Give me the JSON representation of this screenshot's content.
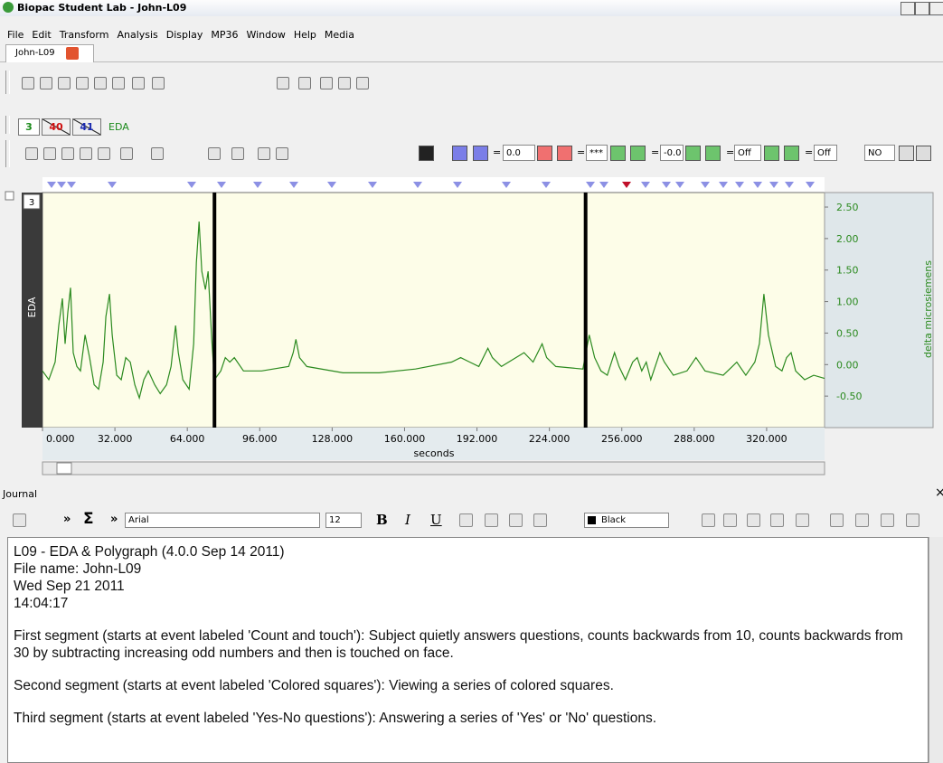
{
  "window": {
    "title": "Biopac Student Lab - John-L09",
    "menu": [
      "File",
      "Edit",
      "Transform",
      "Analysis",
      "Display",
      "MP36",
      "Window",
      "Help",
      "Media"
    ],
    "tab": "John-L09"
  },
  "channels": {
    "buttons": [
      "3",
      "40",
      "41"
    ],
    "label": "EDA"
  },
  "fields": {
    "values": [
      "0.0",
      "***",
      "-0.0",
      "Off",
      "Off",
      "NO"
    ],
    "separator": "="
  },
  "chart_data": {
    "type": "line",
    "channel": "3",
    "channel_label": "EDA",
    "ylabel": "delta microsiemens",
    "xlabel": "seconds",
    "xlim": [
      0,
      345.6
    ],
    "ylim": [
      -1.0,
      2.73
    ],
    "xticks": [
      {
        "value": 0,
        "label": "0.000"
      },
      {
        "value": 32,
        "label": "32.000"
      },
      {
        "value": 64,
        "label": "64.000"
      },
      {
        "value": 96,
        "label": "96.000"
      },
      {
        "value": 128,
        "label": "128.000"
      },
      {
        "value": 160,
        "label": "160.000"
      },
      {
        "value": 192,
        "label": "192.000"
      },
      {
        "value": 224,
        "label": "224.000"
      },
      {
        "value": 256,
        "label": "256.000"
      },
      {
        "value": 288,
        "label": "288.000"
      },
      {
        "value": 320,
        "label": "320.000"
      }
    ],
    "yticks": [
      {
        "value": 2.5,
        "label": "2.50"
      },
      {
        "value": 2,
        "label": "2.00"
      },
      {
        "value": 1.5,
        "label": "1.50"
      },
      {
        "value": 1,
        "label": "1.00"
      },
      {
        "value": 0.5,
        "label": "0.50"
      },
      {
        "value": 0,
        "label": "0.00"
      },
      {
        "value": -0.5,
        "label": "-0.50"
      }
    ],
    "event_lines": [
      76,
      240
    ],
    "series": [
      {
        "color": "#2b8a1f",
        "x": [
          0,
          2.8,
          5.6,
          7.2,
          8.8,
          10,
          11.2,
          12.4,
          13.6,
          15.2,
          16.8,
          18.8,
          20.8,
          22.8,
          24.8,
          26.8,
          28,
          29.6,
          30.8,
          32.8,
          34.8,
          36.8,
          38.8,
          40.8,
          42.8,
          44.8,
          46.8,
          49.6,
          52,
          54.8,
          56.8,
          58.8,
          60,
          62,
          64.8,
          66.8,
          68,
          69.2,
          70.4,
          72,
          73.2,
          74.8,
          76,
          78.8,
          80.8,
          82.8,
          84.8,
          88.8,
          96.8,
          108.8,
          110.8,
          112,
          113.6,
          116.8,
          132.8,
          148.8,
          164.8,
          180.8,
          184.8,
          188.8,
          192.8,
          196.8,
          198.8,
          202.8,
          212.8,
          216.8,
          220.8,
          222.8,
          226.8,
          238.8,
          241.6,
          244,
          246.8,
          249.6,
          252.8,
          254.8,
          257.6,
          260.8,
          262.8,
          264.8,
          266.8,
          268.8,
          272.8,
          274.8,
          278.8,
          284.8,
          288.8,
          292.8,
          300.8,
          304.8,
          306.8,
          310.8,
          314.8,
          316.8,
          318.8,
          320.8,
          324,
          326.8,
          328.8,
          330.8,
          332.8,
          336.8,
          340.8,
          345.6
        ],
        "values": [
          -0.1,
          -0.24,
          0.04,
          0.62,
          1.05,
          0.33,
          0.83,
          1.22,
          0.19,
          -0.03,
          -0.1,
          0.47,
          0.11,
          -0.32,
          -0.39,
          0.04,
          0.76,
          1.12,
          0.47,
          -0.17,
          -0.24,
          0.11,
          0.04,
          -0.32,
          -0.53,
          -0.24,
          -0.1,
          -0.32,
          -0.46,
          -0.32,
          -0.03,
          0.62,
          0.19,
          -0.24,
          -0.39,
          0.33,
          1.62,
          2.27,
          1.48,
          1.19,
          1.48,
          0.4,
          -0.24,
          -0.1,
          0.11,
          0.04,
          0.11,
          -0.1,
          -0.1,
          -0.03,
          0.19,
          0.4,
          0.11,
          -0.03,
          -0.13,
          -0.13,
          -0.07,
          0.04,
          0.11,
          0.04,
          -0.03,
          0.26,
          0.11,
          -0.03,
          0.19,
          0.04,
          0.33,
          0.11,
          -0.03,
          -0.07,
          0.47,
          0.11,
          -0.1,
          -0.17,
          0.19,
          -0.03,
          -0.24,
          0.04,
          0.11,
          -0.1,
          0.04,
          -0.24,
          0.19,
          0.04,
          -0.17,
          -0.1,
          0.11,
          -0.1,
          -0.17,
          -0.03,
          0.04,
          -0.17,
          0.04,
          0.33,
          1.12,
          0.47,
          -0.03,
          -0.1,
          0.11,
          0.19,
          -0.1,
          -0.24,
          -0.17,
          -0.22
        ]
      }
    ]
  },
  "journal": {
    "title": "Journal",
    "glyphs": [
      "»",
      "Σ",
      "»"
    ],
    "font": "Arial",
    "size": "12",
    "format": [
      "B",
      "I",
      "U"
    ],
    "color": "Black",
    "lines": [
      "L09 - EDA & Polygraph (4.0.0 Sep 14 2011)",
      "File name: John-L09",
      "Wed Sep 21 2011",
      "14:04:17"
    ],
    "paragraphs": [
      "First segment (starts at event labeled 'Count and touch'): Subject quietly answers questions, counts backwards from 10, counts backwards from 30 by subtracting increasing odd numbers and then is touched on face.",
      "Second segment (starts at event labeled 'Colored squares'): Viewing a series of colored squares.",
      "Third segment (starts at event labeled 'Yes-No questions'): Answering a series of 'Yes' or 'No' questions."
    ]
  }
}
